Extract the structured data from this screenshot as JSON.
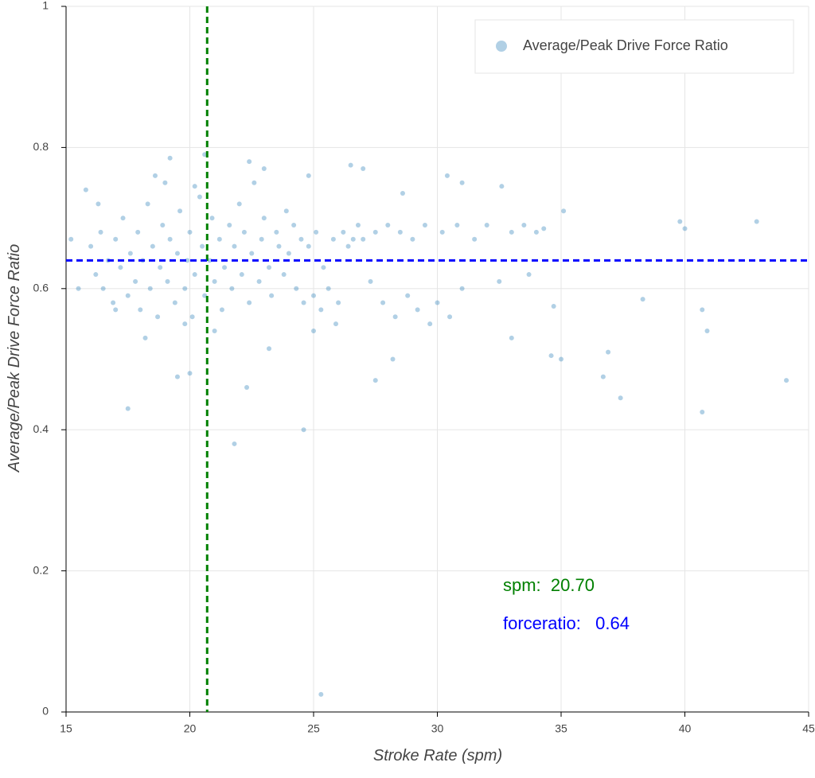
{
  "chart_data": {
    "type": "scatter",
    "x_label": "Stroke Rate (spm)",
    "y_label": "Average/Peak Drive Force Ratio",
    "xlim": [
      15,
      45
    ],
    "ylim": [
      0,
      1
    ],
    "xticks": [
      15,
      20,
      25,
      30,
      35,
      40,
      45
    ],
    "yticks": [
      0,
      0.2,
      0.4,
      0.6,
      0.8,
      1
    ],
    "grid": true,
    "legend": "top-right",
    "vline": {
      "value": 20.7,
      "color": "#008000"
    },
    "hline": {
      "value": 0.64,
      "color": "#0000ff"
    },
    "annotations": [
      {
        "text": "spm:  20.70",
        "color": "#008000"
      },
      {
        "text": "forceratio:   0.64",
        "color": "#0000ff"
      }
    ],
    "series": [
      {
        "name": "Average/Peak Drive Force Ratio",
        "color": "#1f77b4",
        "x": [
          16.0,
          16.2,
          16.4,
          16.5,
          16.7,
          16.9,
          17.0,
          17.2,
          17.3,
          17.5,
          17.6,
          17.8,
          17.9,
          18.0,
          18.1,
          18.3,
          18.4,
          18.5,
          18.7,
          18.8,
          18.9,
          19.0,
          19.1,
          19.2,
          19.4,
          19.5,
          19.6,
          19.8,
          19.9,
          20.0,
          20.1,
          20.2,
          20.4,
          20.5,
          20.6,
          20.8,
          20.9,
          21.0,
          21.2,
          21.3,
          21.4,
          21.6,
          21.7,
          21.8,
          22.0,
          22.1,
          22.2,
          22.4,
          22.5,
          22.6,
          22.8,
          22.9,
          23.0,
          23.2,
          23.3,
          23.5,
          23.6,
          23.8,
          23.9,
          24.0,
          24.2,
          24.3,
          24.5,
          24.6,
          24.8,
          25.0,
          25.1,
          25.3,
          25.4,
          25.6,
          25.8,
          25.9,
          26.0,
          26.2,
          26.4,
          26.6,
          26.8,
          27.0,
          27.3,
          27.5,
          27.8,
          28.0,
          28.3,
          28.5,
          28.8,
          29.0,
          29.2,
          29.5,
          29.7,
          30.0,
          30.2,
          30.5,
          30.8,
          31.0,
          31.5,
          32.0,
          32.5,
          33.0,
          33.5,
          34.0,
          34.3,
          16.3,
          17.0,
          18.2,
          18.6,
          19.2,
          19.8,
          20.2,
          20.6,
          21.0,
          22.4,
          23.0,
          24.8,
          25.0,
          26.5,
          27.0,
          28.6,
          30.4,
          31.0,
          32.6,
          35.1,
          15.2,
          15.5,
          15.8,
          17.5,
          19.5,
          20.0,
          21.8,
          22.3,
          23.2,
          24.6,
          25.3,
          27.5,
          28.2,
          33.0,
          34.6,
          35.0,
          36.7,
          36.9,
          37.4,
          38.3,
          39.8,
          40.0,
          40.7,
          40.7,
          40.9,
          42.9,
          44.1,
          34.7,
          33.7
        ],
        "values": [
          0.66,
          0.62,
          0.68,
          0.6,
          0.64,
          0.58,
          0.67,
          0.63,
          0.7,
          0.59,
          0.65,
          0.61,
          0.68,
          0.57,
          0.64,
          0.72,
          0.6,
          0.66,
          0.56,
          0.63,
          0.69,
          0.75,
          0.61,
          0.67,
          0.58,
          0.65,
          0.71,
          0.6,
          0.64,
          0.68,
          0.56,
          0.62,
          0.73,
          0.66,
          0.59,
          0.64,
          0.7,
          0.61,
          0.67,
          0.57,
          0.63,
          0.69,
          0.6,
          0.66,
          0.72,
          0.62,
          0.68,
          0.58,
          0.65,
          0.75,
          0.61,
          0.67,
          0.7,
          0.63,
          0.59,
          0.68,
          0.66,
          0.62,
          0.71,
          0.65,
          0.69,
          0.6,
          0.67,
          0.58,
          0.66,
          0.59,
          0.68,
          0.57,
          0.63,
          0.6,
          0.67,
          0.55,
          0.58,
          0.68,
          0.66,
          0.67,
          0.69,
          0.67,
          0.61,
          0.68,
          0.58,
          0.69,
          0.56,
          0.68,
          0.59,
          0.67,
          0.57,
          0.69,
          0.55,
          0.58,
          0.68,
          0.56,
          0.69,
          0.6,
          0.67,
          0.69,
          0.61,
          0.68,
          0.69,
          0.68,
          0.685,
          0.72,
          0.57,
          0.53,
          0.76,
          0.785,
          0.55,
          0.745,
          0.79,
          0.54,
          0.78,
          0.77,
          0.76,
          0.54,
          0.775,
          0.77,
          0.735,
          0.76,
          0.75,
          0.745,
          0.71,
          0.67,
          0.6,
          0.74,
          0.43,
          0.475,
          0.48,
          0.38,
          0.46,
          0.515,
          0.4,
          0.025,
          0.47,
          0.5,
          0.53,
          0.505,
          0.5,
          0.475,
          0.51,
          0.445,
          0.585,
          0.695,
          0.685,
          0.57,
          0.425,
          0.54,
          0.695,
          0.47,
          0.575,
          0.62
        ]
      }
    ]
  }
}
